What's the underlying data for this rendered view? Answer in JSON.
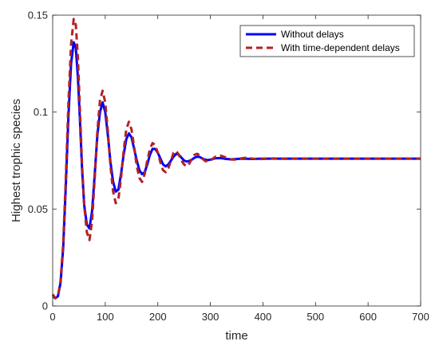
{
  "chart_data": {
    "type": "line",
    "xlabel": "time",
    "ylabel": "Highest trophic species",
    "xlim": [
      0,
      700
    ],
    "ylim": [
      0,
      0.15
    ],
    "x_ticks": [
      0,
      100,
      200,
      300,
      400,
      500,
      600,
      700
    ],
    "y_ticks": [
      0,
      0.05,
      0.1,
      0.15
    ],
    "y_tick_labels": [
      "0",
      "0.05",
      "0.1",
      "0.15"
    ],
    "grid": false,
    "legend_position": "top-right",
    "series": [
      {
        "name": "Without delays",
        "color": "#0000ff",
        "style": "solid",
        "x": [
          0,
          5,
          10,
          15,
          20,
          25,
          30,
          35,
          40,
          44,
          48,
          52,
          56,
          60,
          65,
          70,
          75,
          80,
          85,
          90,
          95,
          100,
          105,
          110,
          115,
          120,
          125,
          130,
          135,
          140,
          145,
          150,
          155,
          160,
          165,
          170,
          175,
          180,
          185,
          190,
          195,
          200,
          205,
          210,
          215,
          220,
          225,
          230,
          235,
          240,
          245,
          250,
          255,
          260,
          265,
          270,
          275,
          280,
          285,
          290,
          295,
          300,
          310,
          320,
          330,
          340,
          350,
          360,
          370,
          380,
          390,
          400,
          420,
          440,
          460,
          480,
          500,
          550,
          600,
          650,
          700
        ],
        "y": [
          0.005,
          0.004,
          0.005,
          0.012,
          0.03,
          0.062,
          0.098,
          0.125,
          0.136,
          0.133,
          0.118,
          0.095,
          0.07,
          0.052,
          0.042,
          0.04,
          0.049,
          0.068,
          0.088,
          0.1,
          0.105,
          0.1,
          0.088,
          0.074,
          0.064,
          0.059,
          0.06,
          0.068,
          0.078,
          0.086,
          0.089,
          0.087,
          0.081,
          0.075,
          0.07,
          0.068,
          0.069,
          0.073,
          0.078,
          0.081,
          0.081,
          0.079,
          0.076,
          0.073,
          0.072,
          0.073,
          0.075,
          0.077,
          0.0785,
          0.078,
          0.0765,
          0.075,
          0.0745,
          0.0748,
          0.0755,
          0.0765,
          0.077,
          0.0768,
          0.076,
          0.0755,
          0.0752,
          0.0755,
          0.0762,
          0.0763,
          0.0758,
          0.0756,
          0.0758,
          0.076,
          0.0759,
          0.0758,
          0.0759,
          0.076,
          0.076,
          0.076,
          0.076,
          0.076,
          0.076,
          0.076,
          0.076,
          0.076,
          0.076
        ]
      },
      {
        "name": "With time-dependent delays",
        "color": "#b22222",
        "style": "dashed",
        "x": [
          0,
          5,
          10,
          15,
          20,
          25,
          30,
          35,
          40,
          44,
          48,
          52,
          56,
          60,
          65,
          70,
          75,
          80,
          85,
          90,
          95,
          100,
          105,
          110,
          115,
          120,
          125,
          130,
          135,
          140,
          145,
          150,
          155,
          160,
          165,
          170,
          175,
          180,
          185,
          190,
          195,
          200,
          205,
          210,
          215,
          220,
          225,
          230,
          235,
          240,
          245,
          250,
          255,
          260,
          265,
          270,
          275,
          280,
          285,
          290,
          295,
          300,
          310,
          320,
          330,
          340,
          350,
          360,
          370,
          380,
          390,
          400,
          420,
          440,
          460,
          480,
          500,
          550,
          600,
          650,
          700
        ],
        "y": [
          0.006,
          0.004,
          0.005,
          0.013,
          0.032,
          0.066,
          0.105,
          0.135,
          0.148,
          0.145,
          0.128,
          0.1,
          0.072,
          0.052,
          0.038,
          0.034,
          0.044,
          0.066,
          0.09,
          0.106,
          0.111,
          0.105,
          0.09,
          0.072,
          0.059,
          0.053,
          0.055,
          0.066,
          0.08,
          0.091,
          0.095,
          0.091,
          0.082,
          0.072,
          0.066,
          0.064,
          0.068,
          0.075,
          0.081,
          0.084,
          0.083,
          0.079,
          0.074,
          0.07,
          0.069,
          0.071,
          0.075,
          0.079,
          0.08,
          0.078,
          0.075,
          0.073,
          0.072,
          0.0735,
          0.076,
          0.078,
          0.0785,
          0.0775,
          0.076,
          0.0748,
          0.0745,
          0.075,
          0.077,
          0.0775,
          0.0765,
          0.0755,
          0.0755,
          0.0762,
          0.0765,
          0.076,
          0.0757,
          0.0758,
          0.0761,
          0.0759,
          0.076,
          0.076,
          0.076,
          0.076,
          0.076,
          0.076,
          0.076
        ]
      }
    ]
  }
}
